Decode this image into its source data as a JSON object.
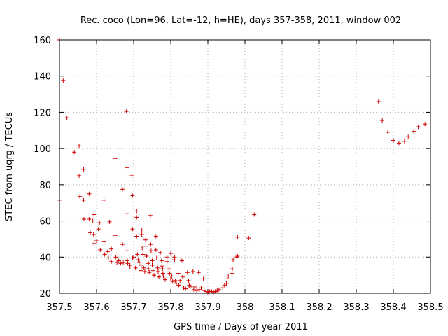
{
  "chart_data": {
    "type": "scatter",
    "title": "Rec. coco (Lon=96, Lat=-12, h=HE), days 357-358, 2011, window 002",
    "xlabel": "GPS time / Days of year 2011",
    "ylabel": "STEC from uqrg / TECUs",
    "xlim": [
      357.5,
      358.5
    ],
    "ylim": [
      20,
      160
    ],
    "xticks": [
      "357.5",
      "357.6",
      "357.7",
      "357.8",
      "357.9",
      "358",
      "358.1",
      "358.2",
      "358.3",
      "358.4",
      "358.5"
    ],
    "yticks": [
      "20",
      "40",
      "60",
      "80",
      "100",
      "120",
      "140",
      "160"
    ],
    "grid": true,
    "colors": {
      "series": "#cc0000"
    },
    "series": [
      {
        "marker": "plus",
        "points": [
          [
            357.5,
            160
          ],
          [
            357.5,
            71.5
          ],
          [
            357.51,
            137.5
          ],
          [
            357.52,
            117
          ],
          [
            357.54,
            98
          ],
          [
            357.553,
            101.5
          ],
          [
            357.553,
            85
          ],
          [
            357.555,
            73.5
          ],
          [
            357.565,
            88.5
          ],
          [
            357.565,
            71.5
          ],
          [
            357.566,
            61
          ],
          [
            357.58,
            75
          ],
          [
            357.58,
            61
          ],
          [
            357.583,
            53.5
          ],
          [
            357.59,
            60
          ],
          [
            357.592,
            52.5
          ],
          [
            357.593,
            47.5
          ],
          [
            357.593,
            63.5
          ],
          [
            357.6,
            49
          ],
          [
            357.605,
            55.5
          ],
          [
            357.608,
            59
          ],
          [
            357.61,
            44
          ],
          [
            357.62,
            71.5
          ],
          [
            357.62,
            48.5
          ],
          [
            357.622,
            41.5
          ],
          [
            357.63,
            43
          ],
          [
            357.632,
            39.5
          ],
          [
            357.635,
            59.5
          ],
          [
            357.64,
            44.5
          ],
          [
            357.64,
            37.5
          ],
          [
            357.65,
            94.5
          ],
          [
            357.65,
            52
          ],
          [
            357.652,
            40
          ],
          [
            357.655,
            37
          ],
          [
            357.66,
            38
          ],
          [
            357.665,
            36.5
          ],
          [
            357.67,
            77.5
          ],
          [
            357.67,
            47
          ],
          [
            357.672,
            37
          ],
          [
            357.68,
            120.5
          ],
          [
            357.682,
            89.5
          ],
          [
            357.682,
            64
          ],
          [
            357.682,
            43.5
          ],
          [
            357.683,
            38
          ],
          [
            357.684,
            36.5
          ],
          [
            357.69,
            35.5
          ],
          [
            357.69,
            34.5
          ],
          [
            357.695,
            85
          ],
          [
            357.697,
            74
          ],
          [
            357.697,
            55.5
          ],
          [
            357.697,
            39.5
          ],
          [
            357.7,
            40
          ],
          [
            357.705,
            34
          ],
          [
            357.708,
            65.5
          ],
          [
            357.708,
            62
          ],
          [
            357.708,
            51.5
          ],
          [
            357.71,
            41.5
          ],
          [
            357.712,
            38.5
          ],
          [
            357.715,
            37
          ],
          [
            357.72,
            35.5
          ],
          [
            357.72,
            32.5
          ],
          [
            357.722,
            55
          ],
          [
            357.722,
            52.5
          ],
          [
            357.723,
            45
          ],
          [
            357.725,
            41.5
          ],
          [
            357.727,
            34
          ],
          [
            357.73,
            32
          ],
          [
            357.732,
            49.5
          ],
          [
            357.733,
            46
          ],
          [
            357.735,
            40.5
          ],
          [
            357.74,
            36.5
          ],
          [
            357.74,
            33.5
          ],
          [
            357.742,
            31.5
          ],
          [
            357.745,
            63
          ],
          [
            357.746,
            47
          ],
          [
            357.747,
            43.5
          ],
          [
            357.75,
            38
          ],
          [
            357.75,
            35.5
          ],
          [
            357.752,
            32.5
          ],
          [
            357.755,
            30
          ],
          [
            357.76,
            51.5
          ],
          [
            357.76,
            44
          ],
          [
            357.762,
            39.5
          ],
          [
            357.765,
            34
          ],
          [
            357.766,
            32
          ],
          [
            357.768,
            29
          ],
          [
            357.772,
            42.5
          ],
          [
            357.775,
            38
          ],
          [
            357.776,
            35
          ],
          [
            357.778,
            33.5
          ],
          [
            357.779,
            31
          ],
          [
            357.78,
            29.5
          ],
          [
            357.785,
            27.5
          ],
          [
            357.79,
            40
          ],
          [
            357.79,
            37.5
          ],
          [
            357.795,
            33.5
          ],
          [
            357.797,
            31
          ],
          [
            357.8,
            42
          ],
          [
            357.8,
            28
          ],
          [
            357.803,
            29.5
          ],
          [
            357.805,
            26.5
          ],
          [
            357.81,
            40
          ],
          [
            357.81,
            38.5
          ],
          [
            357.812,
            27
          ],
          [
            357.815,
            25.5
          ],
          [
            357.82,
            31
          ],
          [
            357.822,
            24.5
          ],
          [
            357.825,
            27
          ],
          [
            357.83,
            38
          ],
          [
            357.832,
            29
          ],
          [
            357.835,
            23
          ],
          [
            357.84,
            22.5
          ],
          [
            357.845,
            31.5
          ],
          [
            357.848,
            27
          ],
          [
            357.85,
            24.5
          ],
          [
            357.852,
            23.5
          ],
          [
            357.86,
            32
          ],
          [
            357.862,
            22
          ],
          [
            357.865,
            23.5
          ],
          [
            357.87,
            21.5
          ],
          [
            357.875,
            31.5
          ],
          [
            357.877,
            22
          ],
          [
            357.882,
            23
          ],
          [
            357.888,
            28
          ],
          [
            357.89,
            21.5
          ],
          [
            357.895,
            21
          ],
          [
            357.9,
            20.5
          ],
          [
            357.905,
            21
          ],
          [
            357.91,
            21
          ],
          [
            357.915,
            20.5
          ],
          [
            357.92,
            21
          ],
          [
            357.925,
            21.5
          ],
          [
            357.93,
            22
          ],
          [
            357.94,
            23
          ],
          [
            357.945,
            24.5
          ],
          [
            357.95,
            25.5
          ],
          [
            357.952,
            28
          ],
          [
            357.955,
            29.5
          ],
          [
            357.965,
            31
          ],
          [
            357.966,
            33.5
          ],
          [
            357.968,
            38.5
          ],
          [
            357.978,
            40
          ],
          [
            357.98,
            40.5
          ],
          [
            357.98,
            51
          ],
          [
            358.01,
            50.5
          ],
          [
            358.025,
            63.5
          ],
          [
            358.36,
            126
          ],
          [
            358.37,
            115.5
          ],
          [
            358.385,
            109
          ],
          [
            358.4,
            104.5
          ],
          [
            358.415,
            103
          ],
          [
            358.43,
            104
          ],
          [
            358.44,
            106.5
          ],
          [
            358.455,
            109.5
          ],
          [
            358.467,
            112
          ],
          [
            358.485,
            113.5
          ]
        ]
      }
    ]
  }
}
